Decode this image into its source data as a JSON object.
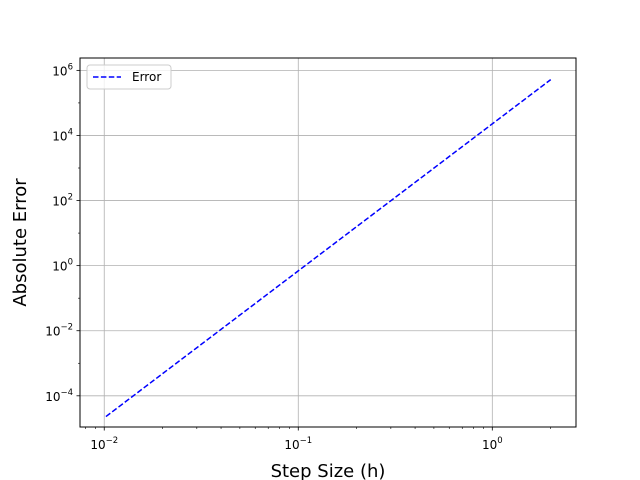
{
  "chart_data": {
    "type": "line",
    "title": "",
    "xlabel": "Step Size (h)",
    "ylabel": "Absolute Error",
    "xscale": "log",
    "yscale": "log",
    "xlim": [
      0.0075,
      2.7
    ],
    "ylim": [
      1.1e-05,
      2400000
    ],
    "grid": true,
    "legend_position": "top-left",
    "xticks": [
      {
        "value": 0.01,
        "base": "10",
        "exp": "−2"
      },
      {
        "value": 0.1,
        "base": "10",
        "exp": "−1"
      },
      {
        "value": 1,
        "base": "10",
        "exp": "0"
      }
    ],
    "yticks": [
      {
        "value": 0.0001,
        "base": "10",
        "exp": "−4"
      },
      {
        "value": 0.01,
        "base": "10",
        "exp": "−2"
      },
      {
        "value": 1,
        "base": "10",
        "exp": "0"
      },
      {
        "value": 100,
        "base": "10",
        "exp": "2"
      },
      {
        "value": 10000,
        "base": "10",
        "exp": "4"
      },
      {
        "value": 1000000,
        "base": "10",
        "exp": "6"
      }
    ],
    "series": [
      {
        "name": "Error",
        "color": "#0000ff",
        "linestyle": "dashed",
        "x": [
          0.0102,
          2.0
        ],
        "y": [
          2.3e-05,
          520000
        ]
      }
    ]
  }
}
